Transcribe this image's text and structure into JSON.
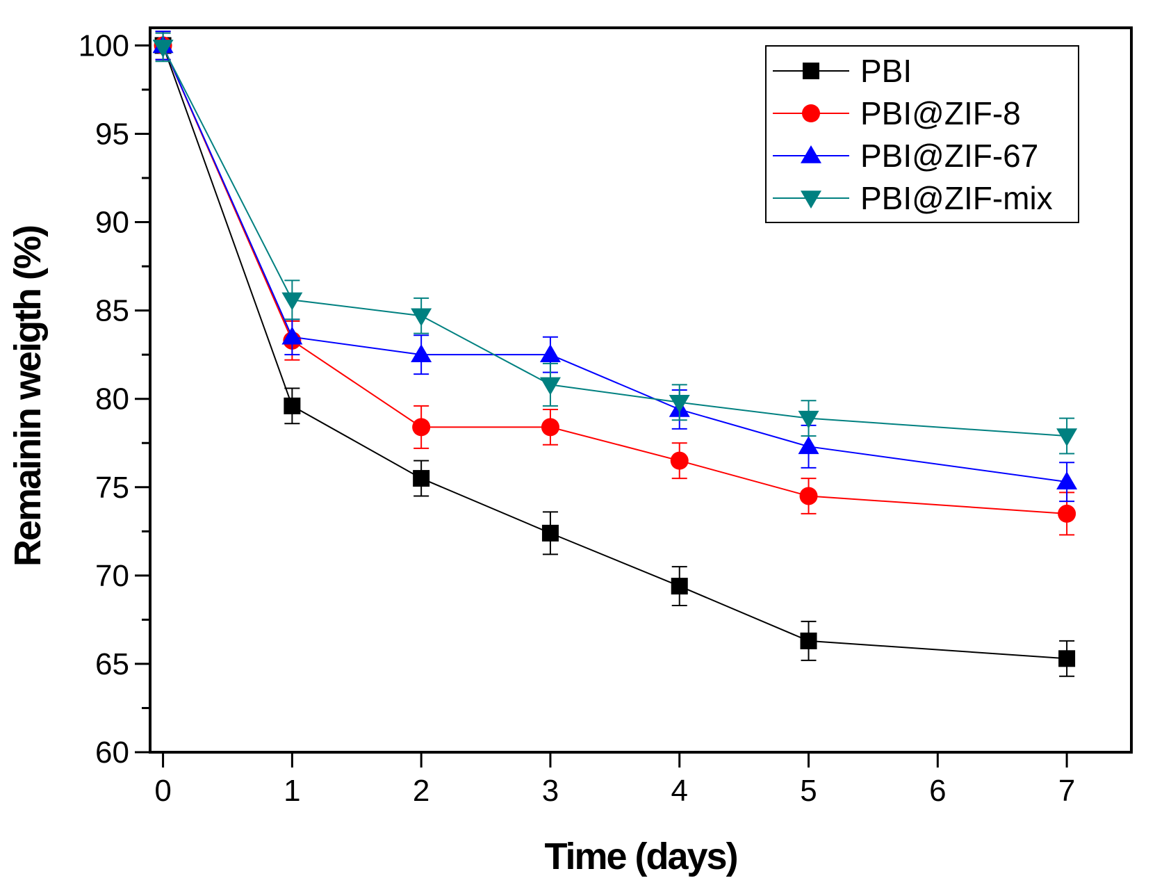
{
  "chart_data": {
    "type": "line",
    "xlabel": "Time (days)",
    "ylabel": "Remainin weigth (%)",
    "xlim": [
      -0.1,
      7.5
    ],
    "ylim": [
      60,
      101
    ],
    "xticks": [
      0,
      1,
      2,
      3,
      4,
      5,
      6,
      7
    ],
    "yticks": [
      60,
      65,
      70,
      75,
      80,
      85,
      90,
      95,
      100
    ],
    "legend_position": "top-right",
    "x": [
      0,
      1,
      2,
      3,
      4,
      5,
      7
    ],
    "series": [
      {
        "name": "PBI",
        "color": "#000000",
        "marker": "square",
        "values": [
          100,
          79.6,
          75.5,
          72.4,
          69.4,
          66.3,
          65.3
        ],
        "errors": [
          0.8,
          1.0,
          1.0,
          1.2,
          1.1,
          1.1,
          1.0
        ]
      },
      {
        "name": "PBI@ZIF-8",
        "color": "#ff0000",
        "marker": "circle",
        "values": [
          100,
          83.3,
          78.4,
          78.4,
          76.5,
          74.5,
          73.5
        ],
        "errors": [
          0.8,
          1.1,
          1.2,
          1.0,
          1.0,
          1.0,
          1.2
        ]
      },
      {
        "name": "PBI@ZIF-67",
        "color": "#0000ff",
        "marker": "triangle-up",
        "values": [
          100,
          83.5,
          82.5,
          82.5,
          79.4,
          77.3,
          75.3
        ],
        "errors": [
          0.8,
          1.0,
          1.1,
          1.0,
          1.1,
          1.2,
          1.1
        ]
      },
      {
        "name": "PBI@ZIF-mix",
        "color": "#008080",
        "marker": "triangle-down",
        "values": [
          99.9,
          85.6,
          84.7,
          80.8,
          79.8,
          78.9,
          77.9
        ],
        "errors": [
          0.8,
          1.1,
          1.0,
          1.2,
          1.0,
          1.0,
          1.0
        ]
      }
    ]
  }
}
